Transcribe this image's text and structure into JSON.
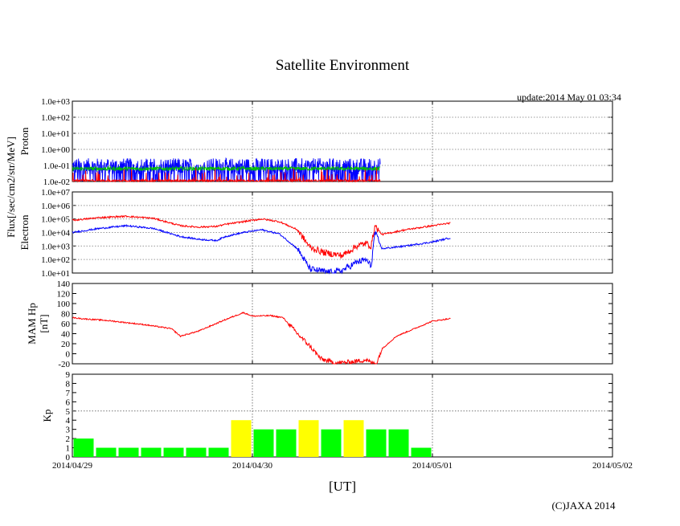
{
  "chart_data": {
    "type": "line",
    "title": "Satellite Environment",
    "update_text": "update:2014 May 01 03:34",
    "copyright": "(C)JAXA 2014",
    "xlabel": "[UT]",
    "x_ticks": [
      "2014/04/29",
      "2014/04/30",
      "2014/05/01",
      "2014/05/02"
    ],
    "x_range_days": [
      0,
      3
    ],
    "flux_axis_label": "Flux[/sec/cm2/str/MeV]",
    "panels": [
      {
        "id": "proton",
        "type": "line",
        "ylabel": "Proton",
        "yscale": "log",
        "ylim_exp": [
          -2,
          3
        ],
        "y_ticks": [
          "1.0e+03",
          "1.0e+02",
          "1.0e+01",
          "1.0e+00",
          "1.0e-01",
          "1.0e-02"
        ],
        "data_end_day": 1.71,
        "series": [
          {
            "name": "proton-blue",
            "color": "#0000ff",
            "base_exp": -1.05,
            "noise_exp": 0.5
          },
          {
            "name": "proton-green",
            "color": "#00c000",
            "base_exp": -1.2,
            "noise_exp": 0.12
          },
          {
            "name": "proton-red",
            "color": "#ff0000",
            "base_exp": -1.95,
            "noise_exp": 0.06
          }
        ]
      },
      {
        "id": "electron",
        "type": "line",
        "ylabel": "Electron",
        "yscale": "log",
        "ylim_exp": [
          1,
          7
        ],
        "y_ticks": [
          "1.0e+07",
          "1.0e+06",
          "1.0e+05",
          "1.0e+04",
          "1.0e+03",
          "1.0e+02",
          "1.0e+01"
        ],
        "series": [
          {
            "name": "electron-red",
            "color": "#ff0000",
            "x": [
              0,
              0.15,
              0.3,
              0.45,
              0.6,
              0.7,
              0.8,
              0.85,
              0.95,
              1.05,
              1.15,
              1.25,
              1.32,
              1.4,
              1.45,
              1.5,
              1.58,
              1.63,
              1.66,
              1.68,
              1.72,
              1.85,
              2.0,
              2.1
            ],
            "y_exp": [
              4.9,
              5.1,
              5.2,
              5.05,
              4.5,
              4.4,
              4.45,
              4.6,
              4.8,
              5.0,
              4.8,
              4.2,
              2.9,
              2.5,
              2.4,
              2.3,
              3.0,
              3.2,
              3.0,
              4.5,
              3.85,
              4.2,
              4.5,
              4.7
            ]
          },
          {
            "name": "electron-blue",
            "color": "#0000ff",
            "x": [
              0,
              0.15,
              0.3,
              0.45,
              0.6,
              0.7,
              0.8,
              0.85,
              0.95,
              1.05,
              1.15,
              1.25,
              1.32,
              1.4,
              1.45,
              1.5,
              1.58,
              1.63,
              1.66,
              1.68,
              1.72,
              1.85,
              2.0,
              2.1
            ],
            "y_exp": [
              4.0,
              4.3,
              4.5,
              4.3,
              3.7,
              3.5,
              3.4,
              3.7,
              4.0,
              4.2,
              3.9,
              2.8,
              1.3,
              1.1,
              1.05,
              1.2,
              1.8,
              2.0,
              1.5,
              4.0,
              2.8,
              3.0,
              3.3,
              3.6
            ]
          }
        ]
      },
      {
        "id": "mam-hp",
        "type": "line",
        "ylabel": "MAM Hp",
        "ylabel2": "[nT]",
        "yscale": "linear",
        "ylim": [
          -20,
          140
        ],
        "y_ticks": [
          "140",
          "120",
          "100",
          "80",
          "60",
          "40",
          "20",
          "0",
          "-20"
        ],
        "series": [
          {
            "name": "hp-red",
            "color": "#ff0000",
            "x": [
              0,
              0.05,
              0.2,
              0.4,
              0.55,
              0.6,
              0.7,
              0.85,
              0.95,
              1.0,
              1.1,
              1.17,
              1.25,
              1.32,
              1.38,
              1.45,
              1.5,
              1.58,
              1.63,
              1.66,
              1.69,
              1.72,
              1.8,
              1.9,
              2.0,
              2.1
            ],
            "y": [
              72,
              70,
              66,
              58,
              50,
              35,
              45,
              68,
              82,
              75,
              76,
              72,
              40,
              15,
              -10,
              -18,
              -18,
              -15,
              -12,
              -18,
              -19,
              10,
              35,
              50,
              65,
              70
            ]
          }
        ]
      },
      {
        "id": "kp",
        "type": "bar",
        "ylabel": "Kp",
        "yscale": "linear",
        "ylim": [
          0,
          9
        ],
        "y_ticks": [
          "9",
          "8",
          "7",
          "6",
          "5",
          "4",
          "3",
          "2",
          "1",
          "0"
        ],
        "threshold": 5,
        "bar_width_days": 0.125,
        "bar_colors": {
          "normal": "#00ff00",
          "elevated": "#ffff00"
        },
        "bars": [
          {
            "x": 0.0625,
            "value": 2,
            "level": "normal"
          },
          {
            "x": 0.1875,
            "value": 1,
            "level": "normal"
          },
          {
            "x": 0.3125,
            "value": 1,
            "level": "normal"
          },
          {
            "x": 0.4375,
            "value": 1,
            "level": "normal"
          },
          {
            "x": 0.5625,
            "value": 1,
            "level": "normal"
          },
          {
            "x": 0.6875,
            "value": 1,
            "level": "normal"
          },
          {
            "x": 0.8125,
            "value": 1,
            "level": "normal"
          },
          {
            "x": 0.9375,
            "value": 4,
            "level": "elevated"
          },
          {
            "x": 1.0625,
            "value": 3,
            "level": "normal"
          },
          {
            "x": 1.1875,
            "value": 3,
            "level": "normal"
          },
          {
            "x": 1.3125,
            "value": 4,
            "level": "elevated"
          },
          {
            "x": 1.4375,
            "value": 3,
            "level": "normal"
          },
          {
            "x": 1.5625,
            "value": 4,
            "level": "elevated"
          },
          {
            "x": 1.6875,
            "value": 3,
            "level": "normal"
          },
          {
            "x": 1.8125,
            "value": 3,
            "level": "normal"
          },
          {
            "x": 1.9375,
            "value": 1,
            "level": "normal"
          }
        ]
      }
    ]
  }
}
